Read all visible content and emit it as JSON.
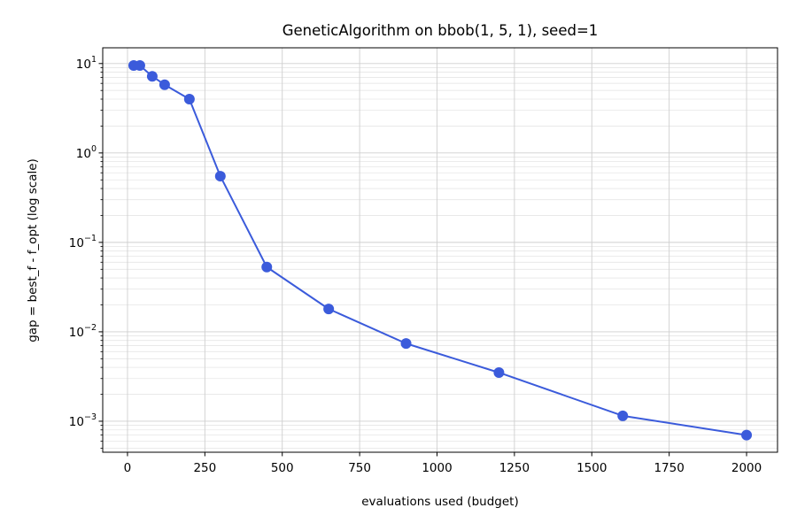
{
  "chart_data": {
    "type": "line",
    "title": "GeneticAlgorithm on bbob(1, 5, 1), seed=1",
    "xlabel": "evaluations used (budget)",
    "ylabel": "gap = best_f - f_opt  (log scale)",
    "x_scale": "linear",
    "y_scale": "log",
    "xlim": [
      -80,
      2100
    ],
    "ylim": [
      0.00045,
      15
    ],
    "x_ticks": [
      0,
      250,
      500,
      750,
      1000,
      1250,
      1500,
      1750,
      2000
    ],
    "x_tick_labels": [
      "0",
      "250",
      "500",
      "750",
      "1000",
      "1250",
      "1500",
      "1750",
      "2000"
    ],
    "y_ticks": [
      {
        "value": 10,
        "base": "10",
        "exp": "1"
      },
      {
        "value": 1,
        "base": "10",
        "exp": "0"
      },
      {
        "value": 0.1,
        "base": "10",
        "exp": "−1"
      },
      {
        "value": 0.01,
        "base": "10",
        "exp": "−2"
      },
      {
        "value": 0.001,
        "base": "10",
        "exp": "−3"
      }
    ],
    "grid": true,
    "legend": "none",
    "series": [
      {
        "color": "#3b5bdb",
        "marker": "circle",
        "x": [
          20,
          40,
          80,
          120,
          200,
          300,
          450,
          650,
          900,
          1200,
          1600,
          2000
        ],
        "y": [
          9.5,
          9.5,
          7.2,
          5.8,
          4.0,
          0.55,
          0.053,
          0.018,
          0.0074,
          0.0035,
          0.00115,
          0.0007
        ]
      }
    ]
  }
}
